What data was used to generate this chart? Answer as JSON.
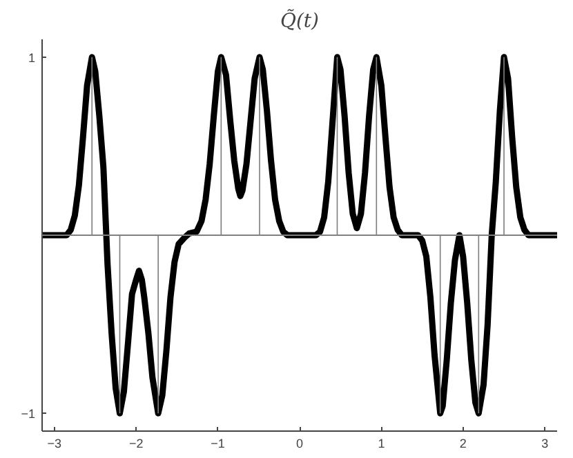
{
  "chart_data": {
    "type": "line",
    "title": "Q̃(t)",
    "xlim": [
      -3.15,
      3.15
    ],
    "ylim": [
      -1.1,
      1.1
    ],
    "xticks": [
      -3,
      -2,
      -1,
      0,
      1,
      2,
      3
    ],
    "yticks": [
      -1,
      1
    ],
    "grid": false,
    "marker": "none",
    "line_style": "solid",
    "ref_lines": [
      {
        "axis": "y",
        "value": 0,
        "color": "#808080"
      }
    ],
    "series": [
      {
        "color": "#000000",
        "x": [
          -3.15,
          -2.85,
          -2.8,
          -2.75,
          -2.7,
          -2.65,
          -2.6,
          -2.54,
          -2.5,
          -2.45,
          -2.4,
          -2.35,
          -2.3,
          -2.25,
          -2.2,
          -2.15,
          -2.1,
          -2.05,
          -2.0,
          -1.965,
          -1.93,
          -1.9,
          -1.85,
          -1.8,
          -1.73,
          -1.68,
          -1.63,
          -1.58,
          -1.53,
          -1.48,
          -1.4,
          -1.35,
          -1.26,
          -1.2,
          -1.15,
          -1.1,
          -1.05,
          -1.0,
          -0.96,
          -0.9,
          -0.85,
          -0.8,
          -0.75,
          -0.725,
          -0.7,
          -0.65,
          -0.6,
          -0.55,
          -0.49,
          -0.45,
          -0.4,
          -0.35,
          -0.3,
          -0.25,
          -0.2,
          -0.15,
          0.2,
          0.25,
          0.3,
          0.35,
          0.4,
          0.46,
          0.5,
          0.55,
          0.6,
          0.65,
          0.7,
          0.75,
          0.8,
          0.85,
          0.9,
          0.94,
          1.0,
          1.05,
          1.1,
          1.15,
          1.2,
          1.25,
          1.45,
          1.5,
          1.55,
          1.6,
          1.65,
          1.72,
          1.75,
          1.8,
          1.85,
          1.9,
          1.955,
          2.0,
          2.05,
          2.1,
          2.15,
          2.19,
          2.25,
          2.3,
          2.35,
          2.4,
          2.45,
          2.5,
          2.55,
          2.6,
          2.65,
          2.7,
          2.75,
          2.8,
          3.15
        ],
        "values": [
          0,
          0,
          0.03,
          0.11,
          0.28,
          0.55,
          0.84,
          1,
          0.92,
          0.67,
          0.38,
          -0.16,
          -0.55,
          -0.86,
          -1,
          -0.88,
          -0.61,
          -0.33,
          -0.25,
          -0.2,
          -0.25,
          -0.35,
          -0.55,
          -0.8,
          -1,
          -0.9,
          -0.65,
          -0.35,
          -0.15,
          -0.05,
          -0.01,
          0.01,
          0.02,
          0.08,
          0.2,
          0.4,
          0.67,
          0.92,
          1,
          0.9,
          0.65,
          0.42,
          0.26,
          0.22,
          0.25,
          0.4,
          0.64,
          0.88,
          1,
          0.93,
          0.7,
          0.42,
          0.2,
          0.08,
          0.02,
          0,
          0,
          0.02,
          0.1,
          0.3,
          0.62,
          1,
          0.93,
          0.67,
          0.35,
          0.12,
          0.04,
          0.12,
          0.35,
          0.67,
          0.93,
          1,
          0.84,
          0.55,
          0.27,
          0.1,
          0.03,
          0,
          0,
          -0.03,
          -0.12,
          -0.35,
          -0.67,
          -1,
          -0.96,
          -0.7,
          -0.38,
          -0.14,
          0,
          -0.12,
          -0.38,
          -0.7,
          -0.94,
          -1,
          -0.84,
          -0.5,
          0,
          0.3,
          0.7,
          1,
          0.88,
          0.55,
          0.27,
          0.1,
          0.03,
          0,
          0
        ]
      },
      {
        "type": "bar",
        "color": "#808080",
        "x": [
          -2.54,
          -2.2,
          -1.73,
          -0.96,
          -0.49,
          0.46,
          0.94,
          1.72,
          2.19,
          2.5
        ],
        "values": [
          1,
          -1,
          -1,
          1,
          1,
          1,
          1,
          -1,
          -1,
          1
        ]
      }
    ]
  }
}
